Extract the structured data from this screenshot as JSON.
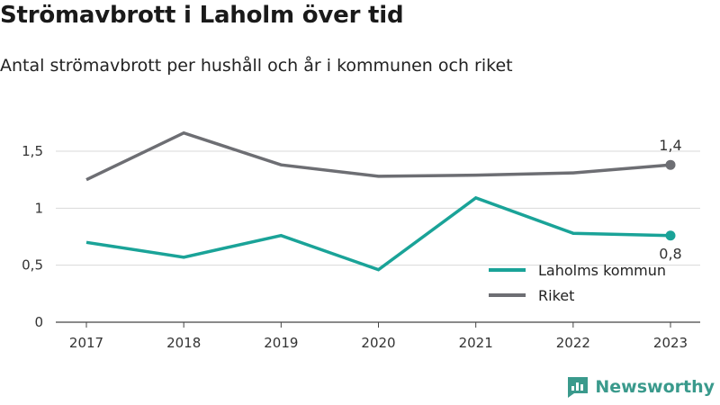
{
  "header": {
    "title": "Strömavbrott i Laholm över tid",
    "subtitle": "Antal strömavbrott per hushåll och år i kommunen och riket"
  },
  "brand": {
    "name": "Newsworthy",
    "icon": "newsworthy-logo-icon",
    "color": "#3a9a8c"
  },
  "chart_data": {
    "type": "line",
    "title": "Strömavbrott i Laholm över tid",
    "subtitle": "Antal strömavbrott per hushåll och år i kommunen och riket",
    "x": [
      "2017",
      "2018",
      "2019",
      "2020",
      "2021",
      "2022",
      "2023"
    ],
    "ylim": [
      0,
      1.5
    ],
    "yticks": [
      0,
      0.5,
      1,
      1.5
    ],
    "ytick_labels": [
      "0",
      "0,5",
      "1",
      "1,5"
    ],
    "grid": true,
    "legend": "bottom-right",
    "series": [
      {
        "name": "Laholms kommun",
        "color": "#1aa398",
        "values": [
          0.7,
          0.57,
          0.76,
          0.46,
          1.09,
          0.78,
          0.76
        ],
        "end_label": "0,8"
      },
      {
        "name": "Riket",
        "color": "#6d6e73",
        "values": [
          1.25,
          1.66,
          1.38,
          1.28,
          1.29,
          1.31,
          1.38
        ],
        "end_label": "1,4"
      }
    ]
  }
}
